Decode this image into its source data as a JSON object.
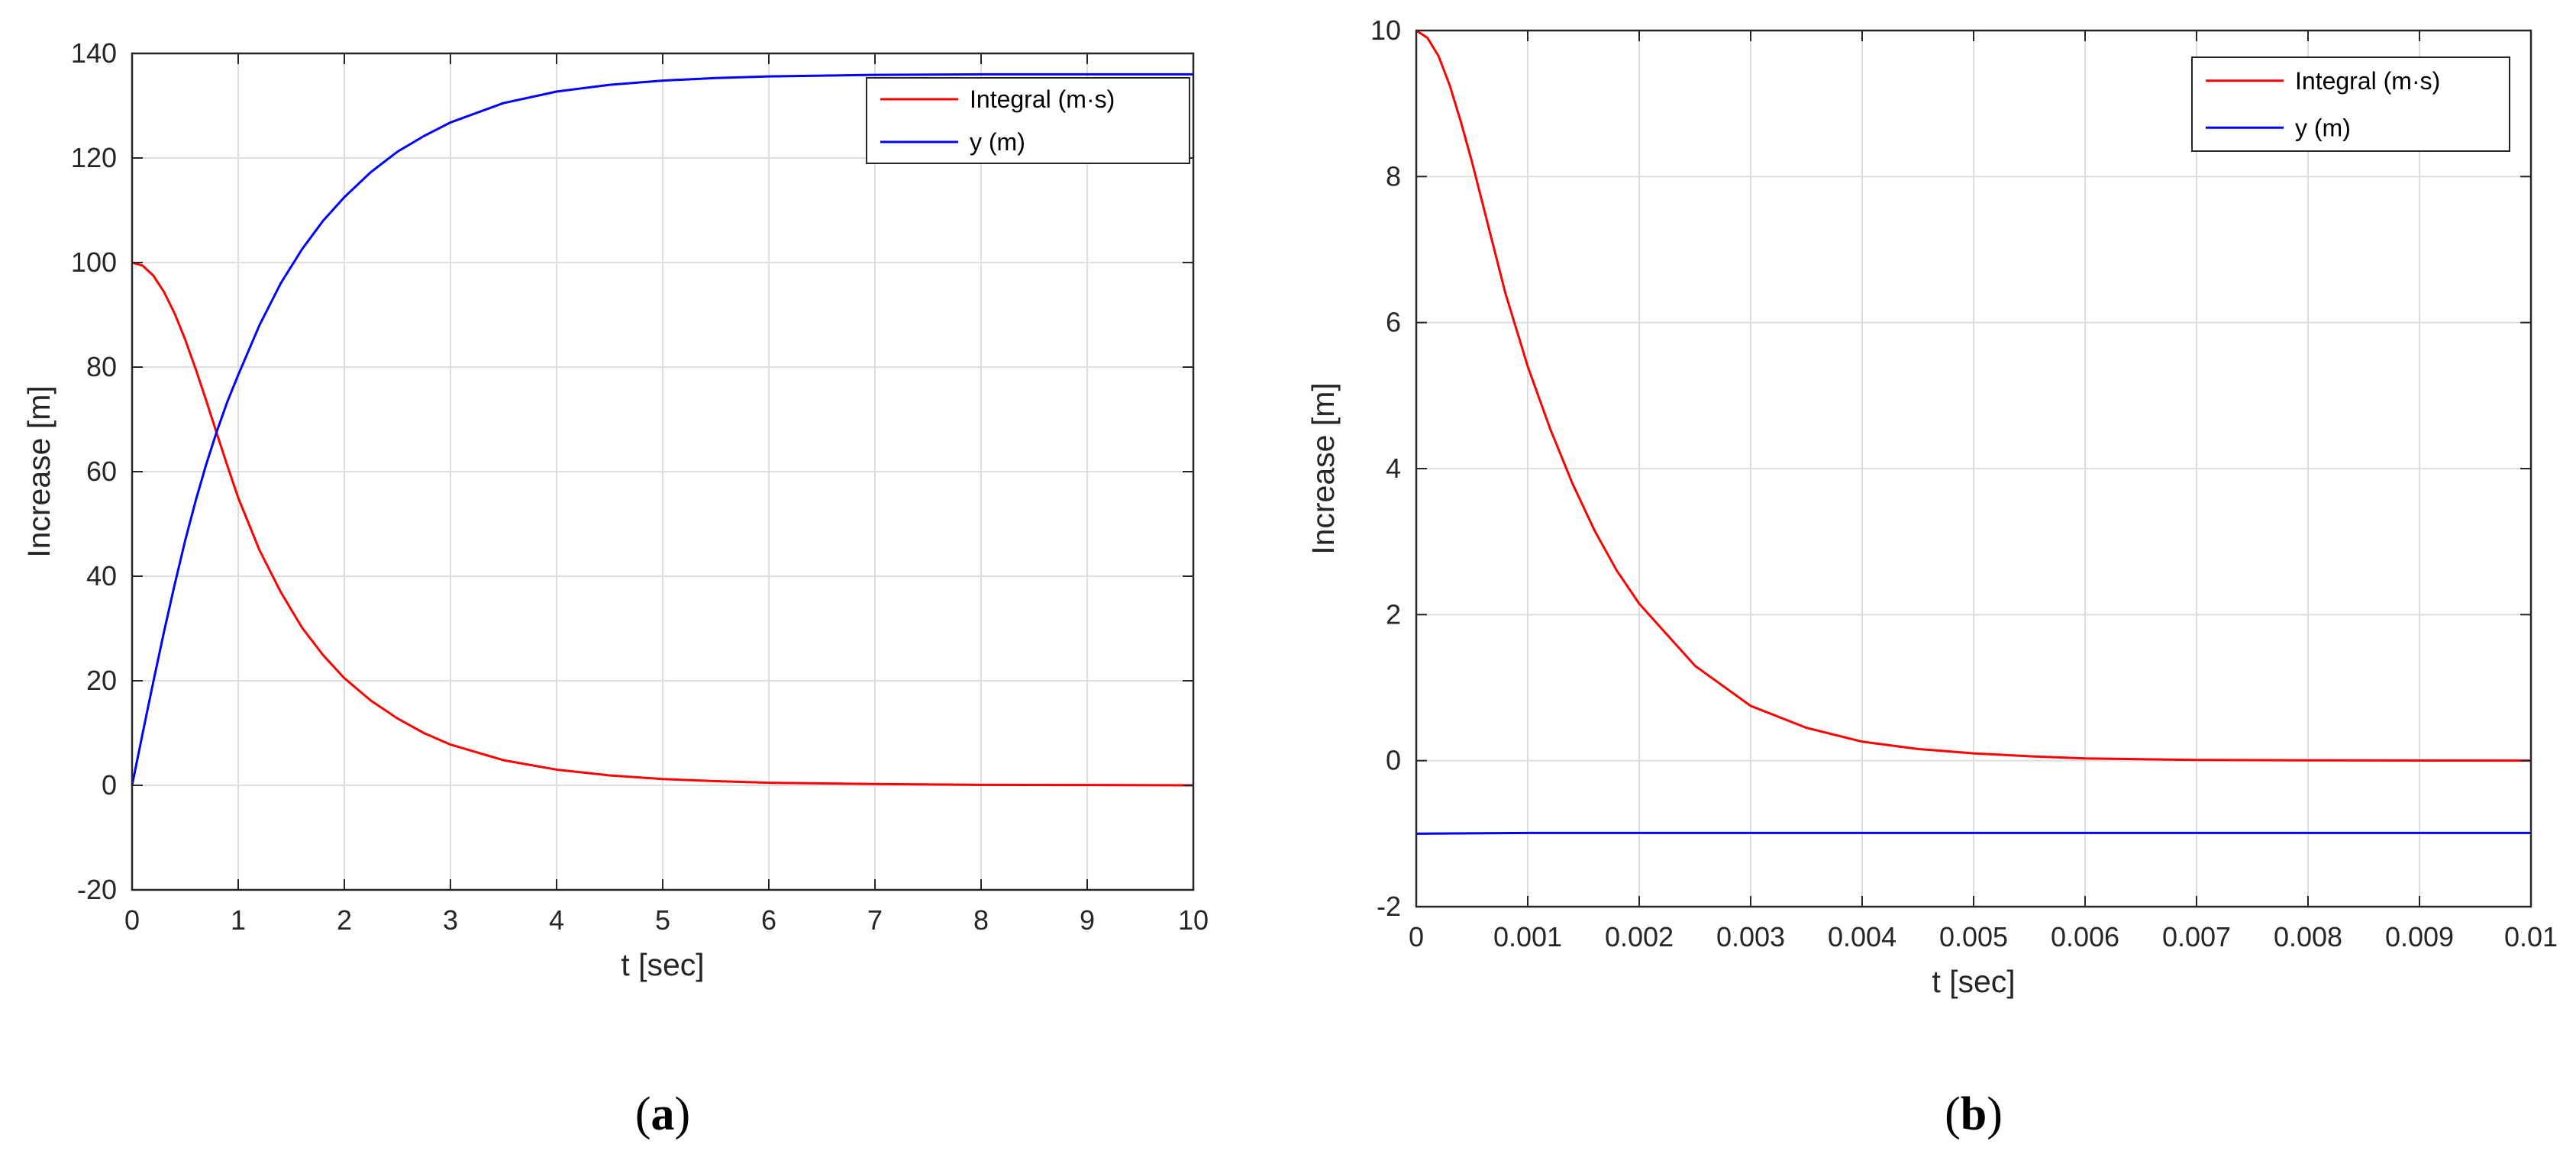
{
  "chart_data": [
    {
      "panel_label": "a",
      "type": "line",
      "xlabel": "t [sec]",
      "ylabel": "Increase [m]",
      "xlim": [
        0,
        10
      ],
      "ylim": [
        -20,
        140
      ],
      "xticks": [
        0,
        1,
        2,
        3,
        4,
        5,
        6,
        7,
        8,
        9,
        10
      ],
      "xtick_labels": [
        "0",
        "1",
        "2",
        "3",
        "4",
        "5",
        "6",
        "7",
        "8",
        "9",
        "10"
      ],
      "yticks": [
        -20,
        0,
        20,
        40,
        60,
        80,
        100,
        120,
        140
      ],
      "ytick_labels": [
        "-20",
        "0",
        "20",
        "40",
        "60",
        "80",
        "100",
        "120",
        "140"
      ],
      "grid": true,
      "legend_position": "top-right",
      "series": [
        {
          "name": "Integral (m·s)",
          "color": "#ff0000",
          "x": [
            0,
            0.1,
            0.2,
            0.3,
            0.4,
            0.5,
            0.6,
            0.7,
            0.8,
            0.9,
            1.0,
            1.2,
            1.4,
            1.6,
            1.8,
            2.0,
            2.25,
            2.5,
            2.75,
            3.0,
            3.5,
            4.0,
            4.5,
            5.0,
            5.5,
            6.0,
            7.0,
            8.0,
            9.0,
            10.0
          ],
          "y": [
            100,
            99.4,
            97.5,
            94.4,
            90.3,
            85.3,
            79.6,
            73.5,
            67.2,
            61.0,
            55.0,
            45.0,
            37.0,
            30.2,
            24.9,
            20.5,
            16.2,
            12.8,
            10.0,
            7.8,
            4.8,
            3.0,
            1.9,
            1.2,
            0.8,
            0.5,
            0.25,
            0.1,
            0.05,
            0
          ]
        },
        {
          "name": "y (m)",
          "color": "#0000ff",
          "x": [
            0,
            0.1,
            0.2,
            0.3,
            0.4,
            0.5,
            0.6,
            0.7,
            0.8,
            0.9,
            1.0,
            1.2,
            1.4,
            1.6,
            1.8,
            2.0,
            2.25,
            2.5,
            2.75,
            3.0,
            3.5,
            4.0,
            4.5,
            5.0,
            5.5,
            6.0,
            7.0,
            8.0,
            9.0,
            10.0
          ],
          "y": [
            0,
            10.0,
            19.8,
            29.3,
            38.3,
            46.8,
            54.5,
            61.5,
            67.8,
            73.5,
            78.5,
            88.0,
            96.0,
            102.5,
            108.0,
            112.5,
            117.3,
            121.2,
            124.2,
            126.8,
            130.5,
            132.7,
            134.0,
            134.8,
            135.3,
            135.6,
            135.9,
            136.0,
            136.0,
            136.0
          ]
        }
      ]
    },
    {
      "panel_label": "b",
      "type": "line",
      "xlabel": "t [sec]",
      "ylabel": "Increase [m]",
      "xlim": [
        0,
        0.01
      ],
      "ylim": [
        -2,
        10
      ],
      "xticks": [
        0,
        0.001,
        0.002,
        0.003,
        0.004,
        0.005,
        0.006,
        0.007,
        0.008,
        0.009,
        0.01
      ],
      "xtick_labels": [
        "0",
        "0.001",
        "0.002",
        "0.003",
        "0.004",
        "0.005",
        "0.006",
        "0.007",
        "0.008",
        "0.009",
        "0.01"
      ],
      "yticks": [
        -2,
        0,
        2,
        4,
        6,
        8,
        10
      ],
      "ytick_labels": [
        "-2",
        "0",
        "2",
        "4",
        "6",
        "8",
        "10"
      ],
      "grid": true,
      "legend_position": "top-right",
      "series": [
        {
          "name": "Integral (m·s)",
          "color": "#ff0000",
          "x": [
            0,
            0.0001,
            0.0002,
            0.0003,
            0.0004,
            0.0005,
            0.0006,
            0.0007,
            0.0008,
            0.0009,
            0.001,
            0.0012,
            0.0014,
            0.0016,
            0.0018,
            0.002,
            0.0025,
            0.003,
            0.0035,
            0.004,
            0.0045,
            0.005,
            0.0055,
            0.006,
            0.0065,
            0.007,
            0.008,
            0.009,
            0.01
          ],
          "y": [
            10,
            9.9,
            9.65,
            9.25,
            8.75,
            8.2,
            7.6,
            7.0,
            6.4,
            5.9,
            5.4,
            4.55,
            3.8,
            3.15,
            2.6,
            2.15,
            1.3,
            0.75,
            0.45,
            0.26,
            0.16,
            0.1,
            0.06,
            0.03,
            0.02,
            0.01,
            0.005,
            0.002,
            0
          ]
        },
        {
          "name": "y (m)",
          "color": "#0000ff",
          "x": [
            0,
            0.001,
            0.002,
            0.003,
            0.004,
            0.005,
            0.006,
            0.007,
            0.008,
            0.009,
            0.01
          ],
          "y": [
            -1.0,
            -0.99,
            -0.99,
            -0.99,
            -0.99,
            -0.99,
            -0.99,
            -0.99,
            -0.99,
            -0.99,
            -0.99
          ]
        }
      ]
    }
  ]
}
